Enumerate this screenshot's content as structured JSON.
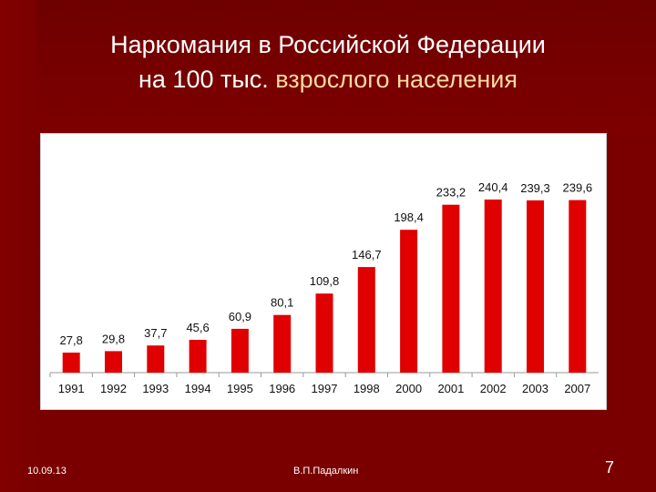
{
  "slide": {
    "title_line1": "Наркомания в Российской Федерации",
    "title_line2_part1": "на 100 тыс. ",
    "title_line2_part2": "взрослого населения",
    "date": "10.09.13",
    "author": "В.П.Падалкин",
    "page_number": "7"
  },
  "colors": {
    "background": "#7a0000",
    "bar": "#e00000",
    "title_accent": "#ffd9a0"
  },
  "chart_data": {
    "type": "bar",
    "categories": [
      "1991",
      "1992",
      "1993",
      "1994",
      "1995",
      "1996",
      "1997",
      "1998",
      "2000",
      "2001",
      "2002",
      "2003",
      "2007"
    ],
    "values": [
      27.8,
      29.8,
      37.7,
      45.6,
      60.9,
      80.1,
      109.8,
      146.7,
      198.4,
      233.2,
      240.4,
      239.3,
      239.6
    ],
    "value_labels": [
      "27,8",
      "29,8",
      "37,7",
      "45,6",
      "60,9",
      "80,1",
      "109,8",
      "146,7",
      "198,4",
      "233,2",
      "240,4",
      "239,3",
      "239,6"
    ],
    "title": "",
    "xlabel": "",
    "ylabel": "",
    "ylim": [
      0,
      240.4
    ],
    "grid": false
  }
}
